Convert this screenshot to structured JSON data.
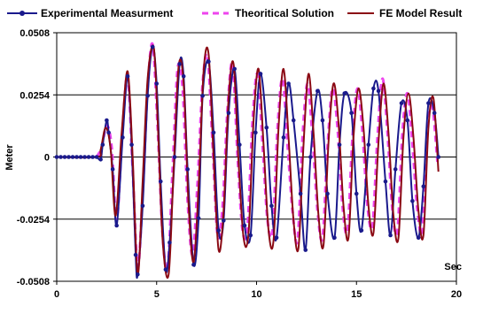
{
  "chart_data": {
    "type": "line",
    "title": "",
    "xlabel": "Sec",
    "ylabel": "Meter",
    "xlim": [
      0,
      20
    ],
    "ylim": [
      -0.0508,
      0.0508
    ],
    "x_ticks": [
      "0",
      "5",
      "10",
      "15",
      "20"
    ],
    "y_ticks": [
      "0.0508",
      "0.0254",
      "0",
      "-0.0254",
      "-0.0508"
    ],
    "grid": "horizontal",
    "legend_position": "top",
    "series": [
      {
        "name": "Experimental Measurment",
        "color": "#1a1a8c",
        "style": "line-with-markers",
        "x": [
          0,
          0.2,
          0.4,
          0.6,
          0.8,
          1.0,
          1.2,
          1.4,
          1.6,
          1.8,
          2.0,
          2.2,
          2.3,
          2.5,
          2.6,
          2.8,
          3.0,
          3.3,
          3.55,
          3.75,
          3.95,
          4.05,
          4.3,
          4.55,
          4.8,
          5.0,
          5.2,
          5.45,
          5.65,
          5.9,
          6.15,
          6.35,
          6.55,
          6.85,
          7.1,
          7.3,
          7.6,
          7.85,
          8.1,
          8.35,
          8.6,
          8.9,
          9.15,
          9.4,
          9.7,
          9.95,
          10.2,
          10.5,
          10.75,
          11.0,
          11.35,
          11.6,
          11.85,
          12.2,
          12.45,
          12.7,
          13.05,
          13.3,
          13.55,
          13.9,
          14.15,
          14.4,
          14.75,
          15.0,
          15.25,
          15.6,
          15.85,
          16.1,
          16.45,
          16.7,
          16.95,
          17.25,
          17.55,
          17.8,
          18.1,
          18.35,
          18.6,
          18.9,
          19.1
        ],
        "y": [
          0,
          0,
          0,
          0,
          0,
          0,
          0,
          0,
          0,
          0,
          0,
          -0.001,
          0.005,
          0.015,
          0.01,
          -0.005,
          -0.028,
          0.008,
          0.033,
          0.005,
          -0.04,
          -0.048,
          -0.02,
          0.025,
          0.045,
          0.03,
          -0.01,
          -0.046,
          -0.035,
          0.0,
          0.038,
          0.033,
          -0.005,
          -0.044,
          -0.025,
          0.025,
          0.039,
          0.01,
          -0.03,
          -0.026,
          0.018,
          0.036,
          0.005,
          -0.028,
          -0.032,
          0.01,
          0.034,
          0.012,
          -0.02,
          -0.033,
          0.008,
          0.03,
          0.015,
          -0.015,
          -0.038,
          0.0,
          0.027,
          0.015,
          -0.015,
          -0.033,
          0.005,
          0.026,
          0.018,
          -0.015,
          -0.03,
          0.005,
          0.028,
          0.027,
          -0.01,
          -0.032,
          -0.005,
          0.022,
          0.015,
          -0.018,
          -0.033,
          -0.012,
          0.022,
          0.018,
          0.0
        ]
      },
      {
        "name": "Theoritical Solution",
        "color": "#ee44ee",
        "style": "dashed",
        "x": [
          2.0,
          2.25,
          2.5,
          2.75,
          3.0,
          3.3,
          3.55,
          3.8,
          4.05,
          4.3,
          4.55,
          4.8,
          5.05,
          5.3,
          5.55,
          5.8,
          6.05,
          6.3,
          6.55,
          6.8,
          7.05,
          7.3,
          7.55,
          7.8,
          8.05,
          8.3,
          8.55,
          8.8,
          9.05,
          9.3,
          9.55,
          9.8,
          10.05,
          10.3,
          10.55,
          10.8,
          11.05,
          11.3,
          11.55,
          11.8,
          12.05,
          12.3,
          12.55,
          12.8,
          13.05,
          13.3,
          13.55,
          13.8,
          14.05,
          14.3,
          14.55,
          14.8,
          15.05,
          15.3,
          15.55,
          15.8,
          16.05,
          16.3,
          16.55,
          16.8,
          17.05,
          17.3,
          17.55,
          17.8,
          18.05,
          18.3,
          18.55,
          18.8,
          19.05
        ],
        "y": [
          0,
          0.004,
          0.013,
          0.004,
          -0.026,
          0.012,
          0.033,
          -0.005,
          -0.045,
          -0.015,
          0.028,
          0.046,
          0.012,
          -0.032,
          -0.045,
          -0.005,
          0.036,
          0.028,
          -0.018,
          -0.04,
          -0.01,
          0.03,
          0.041,
          0.005,
          -0.032,
          -0.02,
          0.02,
          0.038,
          0.0,
          -0.03,
          -0.028,
          0.015,
          0.034,
          0.005,
          -0.026,
          -0.03,
          0.012,
          0.032,
          0.005,
          -0.022,
          -0.034,
          0.008,
          0.03,
          0.008,
          -0.022,
          -0.033,
          0.004,
          0.028,
          0.012,
          -0.02,
          -0.03,
          0.008,
          0.028,
          0.01,
          -0.02,
          -0.028,
          0.008,
          0.032,
          0.01,
          -0.022,
          -0.03,
          0.01,
          0.026,
          0.005,
          -0.022,
          -0.03,
          0.012,
          0.02,
          -0.002
        ]
      },
      {
        "name": "FE Model Result",
        "color": "#8b0a14",
        "style": "line",
        "x": [
          0,
          2.0,
          2.2,
          2.45,
          2.7,
          2.95,
          3.25,
          3.55,
          3.8,
          4.05,
          4.3,
          4.55,
          4.85,
          5.05,
          5.3,
          5.6,
          5.85,
          6.1,
          6.35,
          6.6,
          6.85,
          7.1,
          7.35,
          7.6,
          7.85,
          8.1,
          8.35,
          8.6,
          8.85,
          9.1,
          9.35,
          9.6,
          9.85,
          10.1,
          10.35,
          10.6,
          10.85,
          11.1,
          11.35,
          11.6,
          11.85,
          12.1,
          12.35,
          12.6,
          12.85,
          13.1,
          13.35,
          13.6,
          13.85,
          14.1,
          14.35,
          14.6,
          14.85,
          15.1,
          15.35,
          15.6,
          15.85,
          16.1,
          16.35,
          16.6,
          16.85,
          17.1,
          17.35,
          17.6,
          17.85,
          18.1,
          18.35,
          18.6,
          18.85,
          19.1
        ],
        "y": [
          0,
          0,
          0.003,
          0.012,
          0.003,
          -0.024,
          0.01,
          0.035,
          0.0,
          -0.048,
          -0.01,
          0.032,
          0.045,
          0.015,
          -0.034,
          -0.048,
          -0.005,
          0.037,
          0.03,
          -0.02,
          -0.043,
          -0.012,
          0.035,
          0.042,
          0.0,
          -0.038,
          -0.022,
          0.024,
          0.038,
          -0.002,
          -0.033,
          -0.031,
          0.015,
          0.036,
          0.005,
          -0.03,
          -0.034,
          0.012,
          0.036,
          0.008,
          -0.026,
          -0.037,
          0.005,
          0.034,
          0.01,
          -0.024,
          -0.036,
          0.006,
          0.03,
          0.014,
          -0.02,
          -0.033,
          0.008,
          0.028,
          0.012,
          -0.02,
          -0.031,
          0.006,
          0.03,
          0.01,
          -0.024,
          -0.033,
          0.008,
          0.026,
          0.008,
          -0.022,
          -0.032,
          0.012,
          0.024,
          -0.006
        ]
      }
    ]
  }
}
